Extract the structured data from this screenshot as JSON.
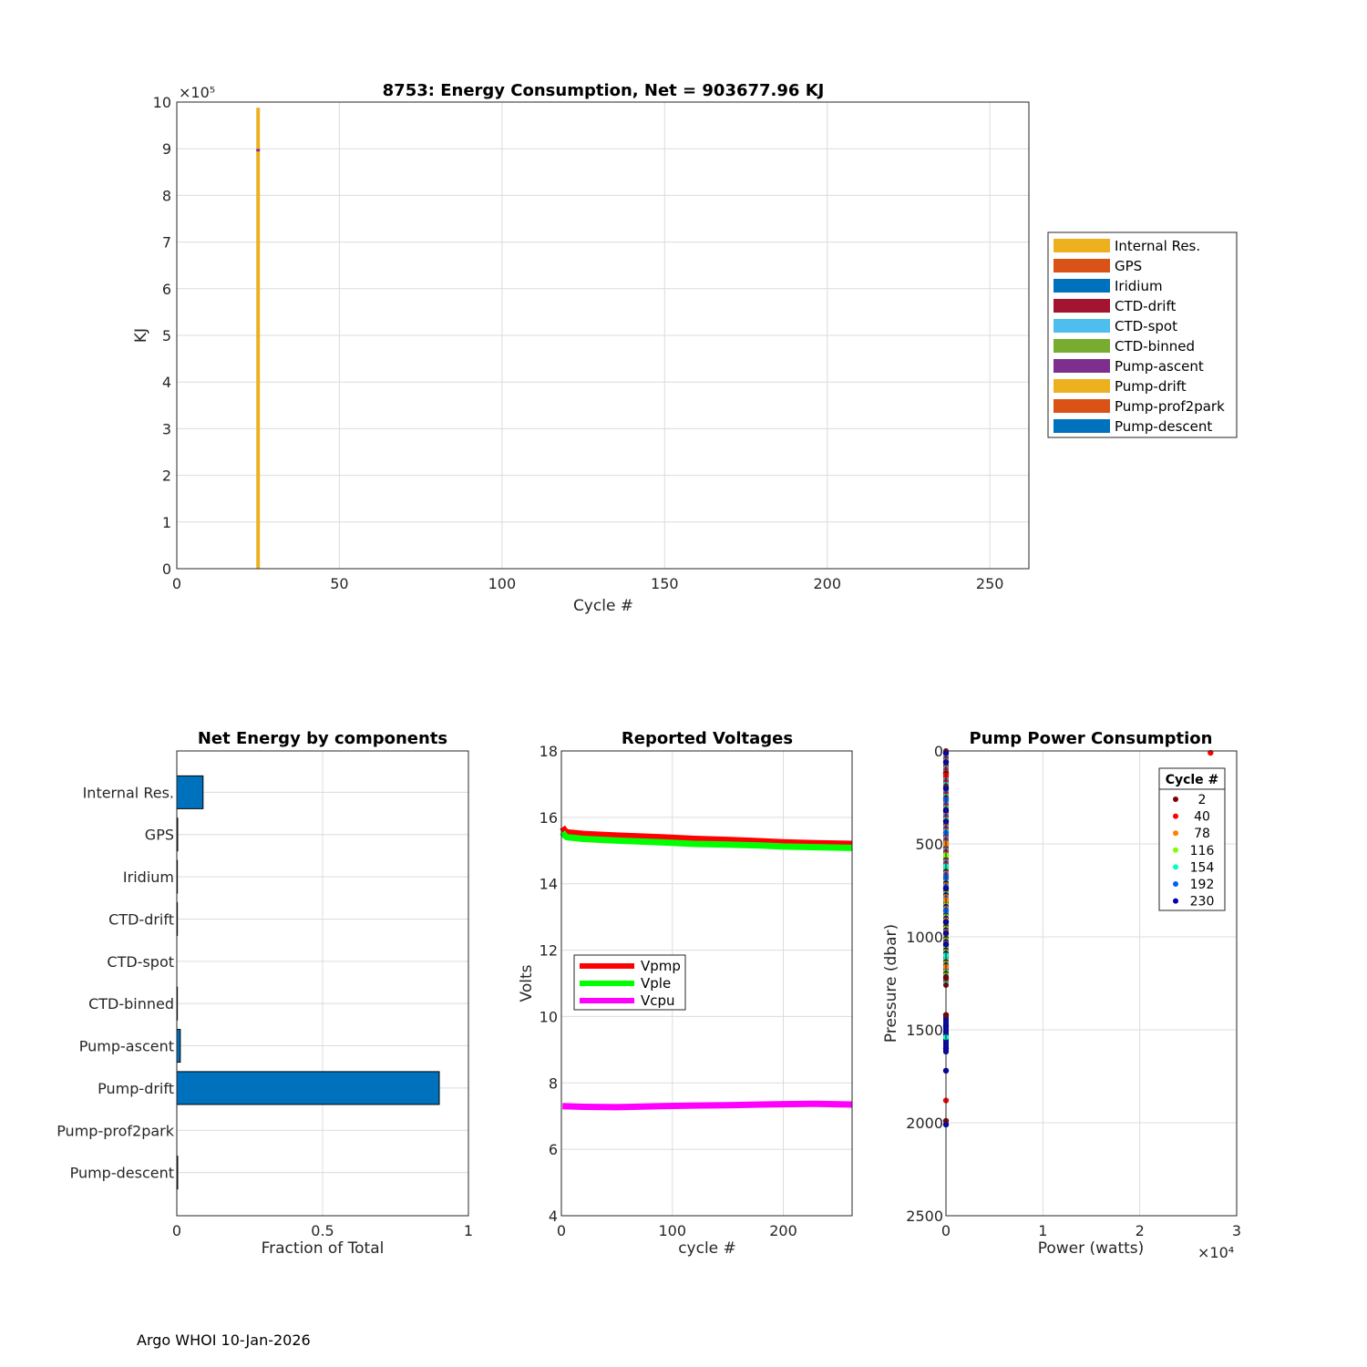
{
  "chart_data": [
    {
      "id": "energy",
      "type": "bar",
      "title": "8753: Energy Consumption,  Net = 903677.96 KJ",
      "xlabel": "Cycle #",
      "ylabel": "KJ",
      "xlim": [
        0,
        262
      ],
      "ylim": [
        0,
        10
      ],
      "y_multiplier_label": "×10⁵",
      "xticks": [
        "0",
        "50",
        "100",
        "150",
        "200",
        "250"
      ],
      "xtick_values": [
        0,
        50,
        100,
        150,
        200,
        250
      ],
      "yticks": [
        "0",
        "1",
        "2",
        "3",
        "4",
        "5",
        "6",
        "7",
        "8",
        "9",
        "10"
      ],
      "grid": true,
      "legend_position": "outside-right",
      "series": [
        {
          "name": "Internal Res.",
          "color": "#EDB120"
        },
        {
          "name": "GPS",
          "color": "#D95319"
        },
        {
          "name": "Iridium",
          "color": "#0072BD"
        },
        {
          "name": "CTD-drift",
          "color": "#A2142F"
        },
        {
          "name": "CTD-spot",
          "color": "#4DBEEE"
        },
        {
          "name": "CTD-binned",
          "color": "#77AC30"
        },
        {
          "name": "Pump-ascent",
          "color": "#7E2F8E"
        },
        {
          "name": "Pump-drift",
          "color": "#EDB120"
        },
        {
          "name": "Pump-prof2park",
          "color": "#D95319"
        },
        {
          "name": "Pump-descent",
          "color": "#0072BD"
        }
      ],
      "bars": [
        {
          "cycle": 25,
          "stack": [
            {
              "series": "Pump-drift",
              "from": 0,
              "to": 8.94
            },
            {
              "series": "Pump-ascent",
              "from": 8.94,
              "to": 9.0
            },
            {
              "series": "Internal Res.",
              "from": 9.0,
              "to": 9.88
            }
          ]
        }
      ]
    },
    {
      "id": "components",
      "type": "bar",
      "orientation": "horizontal",
      "title": "Net Energy by components",
      "xlabel": "Fraction of Total",
      "ylabel": "",
      "xlim": [
        0,
        1
      ],
      "xticks": [
        "0",
        "0.5",
        "1"
      ],
      "xtick_values": [
        0,
        0.5,
        1
      ],
      "categories": [
        "Internal Res.",
        "GPS",
        "Iridium",
        "CTD-drift",
        "CTD-spot",
        "CTD-binned",
        "Pump-ascent",
        "Pump-drift",
        "Pump-prof2park",
        "Pump-descent"
      ],
      "values": [
        0.09,
        0.003,
        0.002,
        0.002,
        0.0,
        0.002,
        0.012,
        0.9,
        0.0,
        0.003
      ],
      "bar_color": "#0072BD",
      "grid": true
    },
    {
      "id": "voltages",
      "type": "line",
      "title": "Reported Voltages",
      "xlabel": "cycle #",
      "ylabel": "Volts",
      "xlim": [
        0,
        262
      ],
      "ylim": [
        4,
        18
      ],
      "xticks": [
        "0",
        "100",
        "200"
      ],
      "xtick_values": [
        0,
        100,
        200
      ],
      "yticks": [
        "4",
        "6",
        "8",
        "10",
        "12",
        "14",
        "16",
        "18"
      ],
      "ytick_values": [
        4,
        6,
        8,
        10,
        12,
        14,
        16,
        18
      ],
      "grid": true,
      "legend_position": "left-middle",
      "series": [
        {
          "name": "Vpmp",
          "color": "#FF0000",
          "x": [
            1,
            3,
            5,
            20,
            50,
            90,
            120,
            150,
            180,
            200,
            230,
            262
          ],
          "y": [
            15.7,
            15.6,
            15.55,
            15.5,
            15.45,
            15.4,
            15.35,
            15.32,
            15.28,
            15.25,
            15.22,
            15.2
          ]
        },
        {
          "name": "Vple",
          "color": "#00FF00",
          "x": [
            1,
            3,
            5,
            20,
            50,
            90,
            120,
            150,
            180,
            200,
            230,
            262
          ],
          "y": [
            15.55,
            15.45,
            15.4,
            15.35,
            15.3,
            15.25,
            15.2,
            15.18,
            15.15,
            15.12,
            15.1,
            15.08
          ]
        },
        {
          "name": "Vcpu",
          "color": "#FF00FF",
          "x": [
            1,
            20,
            50,
            90,
            120,
            150,
            180,
            200,
            230,
            262
          ],
          "y": [
            7.3,
            7.28,
            7.27,
            7.3,
            7.32,
            7.33,
            7.35,
            7.36,
            7.37,
            7.35
          ]
        }
      ]
    },
    {
      "id": "pump",
      "type": "scatter",
      "title": "Pump Power Consumption",
      "xlabel": "Power (watts)",
      "ylabel": "Pressure (dbar)",
      "xlim": [
        0,
        3
      ],
      "ylim": [
        0,
        2500
      ],
      "y_reversed": true,
      "x_multiplier_label": "×10⁴",
      "xticks": [
        "0",
        "1",
        "2",
        "3"
      ],
      "xtick_values": [
        0,
        1,
        2,
        3
      ],
      "yticks": [
        "0",
        "500",
        "1000",
        "1500",
        "2000",
        "2500"
      ],
      "ytick_values": [
        0,
        500,
        1000,
        1500,
        2000,
        2500
      ],
      "grid": true,
      "legend_title": "Cycle #",
      "legend_position": "top-right",
      "legend": [
        {
          "label": "2",
          "color": "#800000"
        },
        {
          "label": "40",
          "color": "#FF0000"
        },
        {
          "label": "78",
          "color": "#FF8000"
        },
        {
          "label": "116",
          "color": "#80FF00"
        },
        {
          "label": "154",
          "color": "#00FFC0"
        },
        {
          "label": "192",
          "color": "#0060FF"
        },
        {
          "label": "230",
          "color": "#0000B0"
        }
      ],
      "points": [
        {
          "x": 2.73,
          "y": 10,
          "color": "#FF0000"
        },
        {
          "x": 0,
          "y": 10,
          "color": "#0000B0"
        },
        {
          "x": 0,
          "y": 60,
          "color": "#0000B0"
        },
        {
          "x": 0,
          "y": 120,
          "color": "#800000"
        },
        {
          "x": 0,
          "y": 130,
          "color": "#FF0000"
        },
        {
          "x": 0,
          "y": 200,
          "color": "#0000B0"
        },
        {
          "x": 0,
          "y": 260,
          "color": "#0060FF"
        },
        {
          "x": 0,
          "y": 320,
          "color": "#0000B0"
        },
        {
          "x": 0,
          "y": 380,
          "color": "#0000B0"
        },
        {
          "x": 0,
          "y": 440,
          "color": "#0060FF"
        },
        {
          "x": 0,
          "y": 500,
          "color": "#FF8000"
        },
        {
          "x": 0,
          "y": 560,
          "color": "#80FF00"
        },
        {
          "x": 0,
          "y": 620,
          "color": "#00FFC0"
        },
        {
          "x": 0,
          "y": 680,
          "color": "#0060FF"
        },
        {
          "x": 0,
          "y": 740,
          "color": "#0000B0"
        },
        {
          "x": 0,
          "y": 800,
          "color": "#FF8000"
        },
        {
          "x": 0,
          "y": 860,
          "color": "#0060FF"
        },
        {
          "x": 0,
          "y": 920,
          "color": "#0000B0"
        },
        {
          "x": 0,
          "y": 980,
          "color": "#0000B0"
        },
        {
          "x": 0,
          "y": 1040,
          "color": "#0000B0"
        },
        {
          "x": 0,
          "y": 1100,
          "color": "#00FFC0"
        },
        {
          "x": 0,
          "y": 1160,
          "color": "#FF8000"
        },
        {
          "x": 0,
          "y": 1220,
          "color": "#800000"
        },
        {
          "x": 0,
          "y": 1420,
          "color": "#800000"
        },
        {
          "x": 0,
          "y": 1480,
          "color": "#0000B0"
        },
        {
          "x": 0,
          "y": 1540,
          "color": "#00FFC0"
        },
        {
          "x": 0,
          "y": 1600,
          "color": "#0000B0"
        },
        {
          "x": 0,
          "y": 1720,
          "color": "#0000B0"
        },
        {
          "x": 0,
          "y": 1880,
          "color": "#FF0000"
        },
        {
          "x": 0,
          "y": 1990,
          "color": "#800000"
        },
        {
          "x": 0,
          "y": 2010,
          "color": "#0000B0"
        }
      ]
    }
  ],
  "footer": {
    "text": "Argo WHOI 10-Jan-2026"
  }
}
